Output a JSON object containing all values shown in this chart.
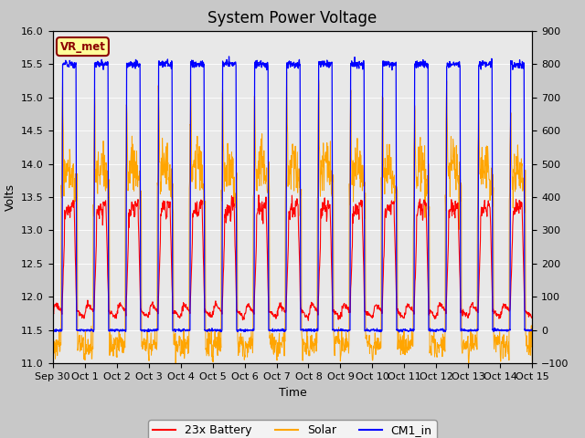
{
  "title": "System Power Voltage",
  "xlabel": "Time",
  "ylabel": "Volts",
  "ylim_left": [
    11.0,
    16.0
  ],
  "ylim_right": [
    -100,
    900
  ],
  "background_color": "#c8c8c8",
  "plot_bg_color": "#e8e8e8",
  "legend_label": "VR_met",
  "line_labels": [
    "23x Battery",
    "Solar",
    "CM1_in"
  ],
  "line_colors": [
    "red",
    "orange",
    "blue"
  ],
  "xtick_labels": [
    "Sep 30",
    "Oct 1",
    "Oct 2",
    "Oct 3",
    "Oct 4",
    "Oct 5",
    "Oct 6",
    "Oct 7",
    "Oct 8",
    "Oct 9",
    "Oct 10",
    "Oct 11",
    "Oct 12",
    "Oct 13",
    "Oct 14",
    "Oct 15"
  ],
  "title_fontsize": 12,
  "axis_fontsize": 9,
  "tick_fontsize": 8,
  "right_ticks": [
    -100,
    0,
    100,
    200,
    300,
    400,
    500,
    600,
    700,
    800,
    900
  ],
  "left_ticks": [
    11.0,
    11.5,
    12.0,
    12.5,
    13.0,
    13.5,
    14.0,
    14.5,
    15.0,
    15.5,
    16.0
  ]
}
